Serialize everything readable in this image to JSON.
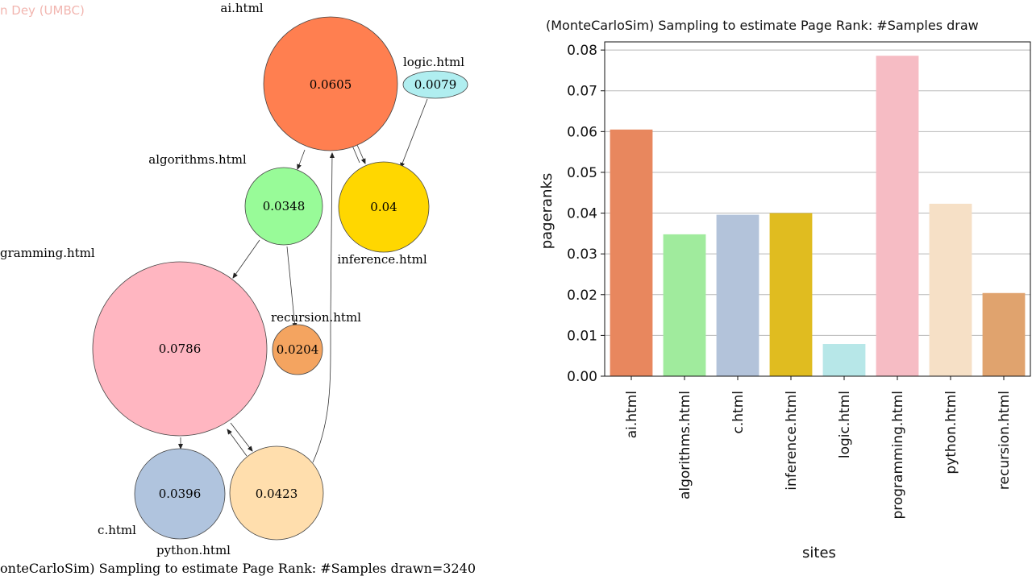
{
  "watermark": "n Dey (UMBC)",
  "graph": {
    "caption": "onteCarloSim) Sampling to estimate Page Rank: #Samples drawn=3240",
    "nodes": [
      {
        "id": "ai",
        "label": "ai.html",
        "value": "0.0605",
        "color": "#ff7f50"
      },
      {
        "id": "logic",
        "label": "logic.html",
        "value": "0.0079",
        "color": "#b0eef0"
      },
      {
        "id": "algorithms",
        "label": "algorithms.html",
        "value": "0.0348",
        "color": "#98fb98"
      },
      {
        "id": "inference",
        "label": "inference.html",
        "value": "0.04",
        "color": "#ffd700"
      },
      {
        "id": "programming",
        "label": "gramming.html",
        "value": "0.0786",
        "color": "#ffb6c1"
      },
      {
        "id": "recursion",
        "label": "recursion.html",
        "value": "0.0204",
        "color": "#f4a460"
      },
      {
        "id": "c",
        "label": "c.html",
        "value": "0.0396",
        "color": "#b0c4de"
      },
      {
        "id": "python",
        "label": "python.html",
        "value": "0.0423",
        "color": "#ffdead"
      }
    ]
  },
  "chart_data": {
    "type": "bar",
    "title": "(MonteCarloSim) Sampling to estimate Page Rank: #Samples draw",
    "xlabel": "sites",
    "ylabel": "pageranks",
    "categories": [
      "ai.html",
      "algorithms.html",
      "c.html",
      "inference.html",
      "logic.html",
      "programming.html",
      "python.html",
      "recursion.html"
    ],
    "values": [
      0.0605,
      0.0348,
      0.0396,
      0.04,
      0.0079,
      0.0786,
      0.0423,
      0.0204
    ],
    "colors": [
      "#e8875e",
      "#a0eb9d",
      "#b3c3da",
      "#e0bc20",
      "#b7e7e8",
      "#f6bcc4",
      "#f6e0c6",
      "#e0a36e"
    ],
    "ylim": [
      0,
      0.082
    ],
    "yticks": [
      "0.00",
      "0.01",
      "0.02",
      "0.03",
      "0.04",
      "0.05",
      "0.06",
      "0.07",
      "0.08"
    ],
    "grid": "horizontal",
    "legend": "none"
  }
}
